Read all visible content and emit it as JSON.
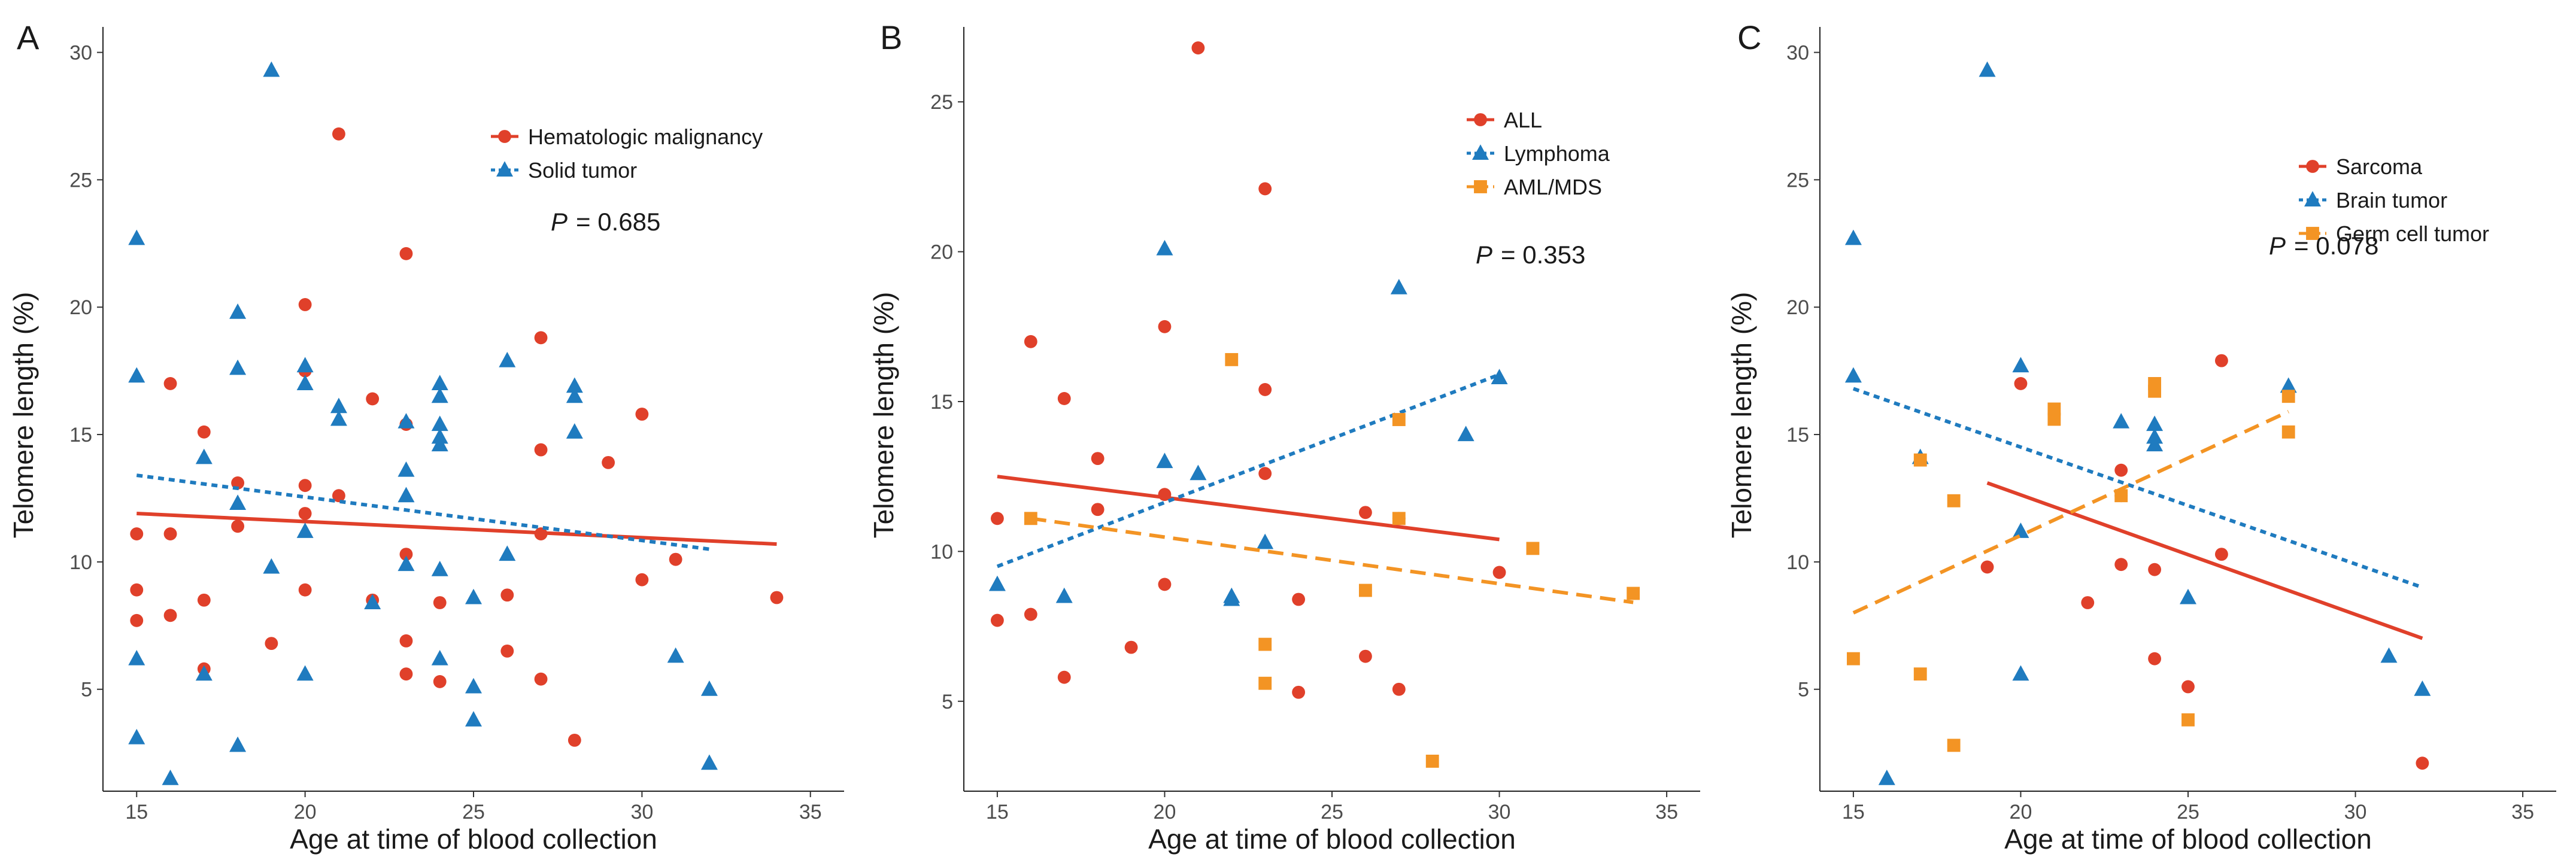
{
  "figure": {
    "xlabel": "Age at time of blood collection",
    "ylabel": "Telomere length (%)"
  },
  "colors": {
    "red": "#e0402a",
    "blue": "#1f7bbf",
    "orange": "#f39424"
  },
  "chart_data": [
    {
      "type": "scatter",
      "panel": "A",
      "xlabel": "Age at time of blood collection",
      "ylabel": "Telomere length (%)",
      "xlim": [
        14,
        36
      ],
      "ylim": [
        1,
        31
      ],
      "xticks": [
        15,
        20,
        25,
        30,
        35
      ],
      "yticks": [
        5,
        10,
        15,
        20,
        25,
        30
      ],
      "grid": false,
      "legend_position": "top-right",
      "p_symbol": "P",
      "p_value": "= 0.685",
      "series": [
        {
          "name": "Hematologic malignancy",
          "color": "#e0402a",
          "marker": "circle",
          "line_style": "solid",
          "points": [
            [
              15,
              11.1
            ],
            [
              15,
              8.9
            ],
            [
              15,
              7.7
            ],
            [
              16,
              17.0
            ],
            [
              16,
              11.1
            ],
            [
              16,
              7.9
            ],
            [
              17,
              15.1
            ],
            [
              17,
              8.5
            ],
            [
              17,
              5.8
            ],
            [
              18,
              13.1
            ],
            [
              18,
              11.4
            ],
            [
              19,
              6.8
            ],
            [
              20,
              20.1
            ],
            [
              20,
              17.5
            ],
            [
              20,
              13.0
            ],
            [
              20,
              11.9
            ],
            [
              20,
              8.9
            ],
            [
              21,
              26.8
            ],
            [
              21,
              12.6
            ],
            [
              22,
              16.4
            ],
            [
              22,
              8.5
            ],
            [
              23,
              22.1
            ],
            [
              23,
              15.4
            ],
            [
              23,
              10.3
            ],
            [
              23,
              6.9
            ],
            [
              23,
              5.6
            ],
            [
              24,
              8.4
            ],
            [
              24,
              5.3
            ],
            [
              26,
              8.7
            ],
            [
              26,
              6.5
            ],
            [
              27,
              18.8
            ],
            [
              27,
              14.4
            ],
            [
              27,
              11.1
            ],
            [
              27,
              5.4
            ],
            [
              28,
              3.0
            ],
            [
              29,
              13.9
            ],
            [
              30,
              15.8
            ],
            [
              30,
              9.3
            ],
            [
              31,
              10.1
            ],
            [
              34,
              8.6
            ]
          ],
          "fit": [
            [
              15,
              11.9
            ],
            [
              34,
              10.7
            ]
          ]
        },
        {
          "name": "Solid tumor",
          "color": "#1f7bbf",
          "marker": "triangle",
          "line_style": "dotted",
          "points": [
            [
              15,
              22.7
            ],
            [
              15,
              17.3
            ],
            [
              15,
              6.2
            ],
            [
              15,
              3.1
            ],
            [
              16,
              1.5
            ],
            [
              17,
              14.1
            ],
            [
              17,
              5.6
            ],
            [
              18,
              19.8
            ],
            [
              18,
              17.6
            ],
            [
              18,
              12.3
            ],
            [
              18,
              2.8
            ],
            [
              19,
              29.3
            ],
            [
              19,
              9.8
            ],
            [
              20,
              17.7
            ],
            [
              20,
              17.0
            ],
            [
              20,
              11.2
            ],
            [
              20,
              5.6
            ],
            [
              21,
              16.1
            ],
            [
              21,
              15.6
            ],
            [
              22,
              8.4
            ],
            [
              23,
              15.5
            ],
            [
              23,
              13.6
            ],
            [
              23,
              12.6
            ],
            [
              23,
              9.9
            ],
            [
              24,
              17.0
            ],
            [
              24,
              16.5
            ],
            [
              24,
              15.4
            ],
            [
              24,
              14.9
            ],
            [
              24,
              14.6
            ],
            [
              24,
              9.7
            ],
            [
              24,
              6.2
            ],
            [
              25,
              8.6
            ],
            [
              25,
              5.1
            ],
            [
              25,
              3.8
            ],
            [
              26,
              17.9
            ],
            [
              26,
              10.3
            ],
            [
              28,
              16.9
            ],
            [
              28,
              16.5
            ],
            [
              28,
              15.1
            ],
            [
              31,
              6.3
            ],
            [
              32,
              5.0
            ],
            [
              32,
              2.1
            ]
          ],
          "fit": [
            [
              15,
              13.4
            ],
            [
              32,
              10.5
            ]
          ]
        }
      ]
    },
    {
      "type": "scatter",
      "panel": "B",
      "xlabel": "Age at time of blood collection",
      "ylabel": "Telomere length (%)",
      "xlim": [
        14,
        36
      ],
      "ylim": [
        2,
        27.5
      ],
      "xticks": [
        15,
        20,
        25,
        30,
        35
      ],
      "yticks": [
        5,
        10,
        15,
        20,
        25
      ],
      "grid": false,
      "legend_position": "top-right",
      "p_symbol": "P",
      "p_value": "= 0.353",
      "series": [
        {
          "name": "ALL",
          "color": "#e0402a",
          "marker": "circle",
          "line_style": "solid",
          "points": [
            [
              15,
              11.1
            ],
            [
              15,
              7.7
            ],
            [
              16,
              17.0
            ],
            [
              16,
              7.9
            ],
            [
              17,
              15.1
            ],
            [
              17,
              5.8
            ],
            [
              18,
              13.1
            ],
            [
              18,
              11.4
            ],
            [
              19,
              6.8
            ],
            [
              20,
              17.5
            ],
            [
              20,
              11.9
            ],
            [
              20,
              8.9
            ],
            [
              21,
              26.8
            ],
            [
              23,
              22.1
            ],
            [
              23,
              15.4
            ],
            [
              23,
              12.6
            ],
            [
              24,
              8.4
            ],
            [
              24,
              5.3
            ],
            [
              26,
              11.3
            ],
            [
              26,
              6.5
            ],
            [
              27,
              11.1
            ],
            [
              27,
              5.4
            ],
            [
              30,
              9.3
            ]
          ],
          "fit": [
            [
              15,
              12.5
            ],
            [
              30,
              10.4
            ]
          ]
        },
        {
          "name": "Lymphoma",
          "color": "#1f7bbf",
          "marker": "triangle",
          "line_style": "dotted",
          "points": [
            [
              15,
              8.9
            ],
            [
              17,
              8.5
            ],
            [
              20,
              20.1
            ],
            [
              20,
              13.0
            ],
            [
              21,
              12.6
            ],
            [
              22,
              8.5
            ],
            [
              22,
              8.4
            ],
            [
              23,
              10.3
            ],
            [
              27,
              18.8
            ],
            [
              29,
              13.9
            ],
            [
              30,
              15.8
            ]
          ],
          "fit": [
            [
              15,
              9.5
            ],
            [
              30,
              15.9
            ]
          ]
        },
        {
          "name": "AML/MDS",
          "color": "#f39424",
          "marker": "square",
          "line_style": "dashed",
          "points": [
            [
              16,
              11.1
            ],
            [
              22,
              16.4
            ],
            [
              23,
              6.9
            ],
            [
              23,
              5.6
            ],
            [
              26,
              8.7
            ],
            [
              27,
              14.4
            ],
            [
              27,
              11.1
            ],
            [
              28,
              3.0
            ],
            [
              31,
              10.1
            ],
            [
              34,
              8.6
            ]
          ],
          "fit": [
            [
              16,
              11.1
            ],
            [
              34,
              8.3
            ]
          ]
        }
      ]
    },
    {
      "type": "scatter",
      "panel": "C",
      "xlabel": "Age at time of blood collection",
      "ylabel": "Telomere length (%)",
      "xlim": [
        14,
        36
      ],
      "ylim": [
        1,
        31
      ],
      "xticks": [
        15,
        20,
        25,
        30,
        35
      ],
      "yticks": [
        5,
        10,
        15,
        20,
        25,
        30
      ],
      "grid": false,
      "legend_position": "top-right",
      "p_symbol": "P",
      "p_value": "= 0.078",
      "series": [
        {
          "name": "Sarcoma",
          "color": "#e0402a",
          "marker": "circle",
          "line_style": "solid",
          "points": [
            [
              19,
              9.8
            ],
            [
              20,
              17.0
            ],
            [
              22,
              8.4
            ],
            [
              23,
              13.6
            ],
            [
              23,
              12.6
            ],
            [
              23,
              9.9
            ],
            [
              24,
              9.7
            ],
            [
              24,
              6.2
            ],
            [
              25,
              5.1
            ],
            [
              26,
              17.9
            ],
            [
              26,
              10.3
            ],
            [
              32,
              2.1
            ]
          ],
          "fit": [
            [
              19,
              13.1
            ],
            [
              32,
              7.0
            ]
          ]
        },
        {
          "name": "Brain tumor",
          "color": "#1f7bbf",
          "marker": "triangle",
          "line_style": "dotted",
          "points": [
            [
              15,
              22.7
            ],
            [
              15,
              17.3
            ],
            [
              16,
              1.5
            ],
            [
              17,
              14.1
            ],
            [
              19,
              29.3
            ],
            [
              20,
              17.7
            ],
            [
              20,
              11.2
            ],
            [
              20,
              5.6
            ],
            [
              23,
              15.5
            ],
            [
              24,
              15.4
            ],
            [
              24,
              14.9
            ],
            [
              24,
              14.6
            ],
            [
              25,
              8.6
            ],
            [
              28,
              16.9
            ],
            [
              31,
              6.3
            ],
            [
              32,
              5.0
            ]
          ],
          "fit": [
            [
              15,
              16.8
            ],
            [
              32,
              9.0
            ]
          ]
        },
        {
          "name": "Germ cell tumor",
          "color": "#f39424",
          "marker": "square",
          "line_style": "dashed",
          "points": [
            [
              15,
              6.2
            ],
            [
              17,
              14.0
            ],
            [
              17,
              5.6
            ],
            [
              18,
              12.4
            ],
            [
              18,
              2.8
            ],
            [
              21,
              16.0
            ],
            [
              21,
              15.6
            ],
            [
              23,
              12.6
            ],
            [
              24,
              17.0
            ],
            [
              24,
              16.7
            ],
            [
              25,
              3.8
            ],
            [
              28,
              16.5
            ],
            [
              28,
              15.1
            ]
          ],
          "fit": [
            [
              15,
              8.0
            ],
            [
              28,
              15.9
            ]
          ]
        }
      ]
    }
  ]
}
